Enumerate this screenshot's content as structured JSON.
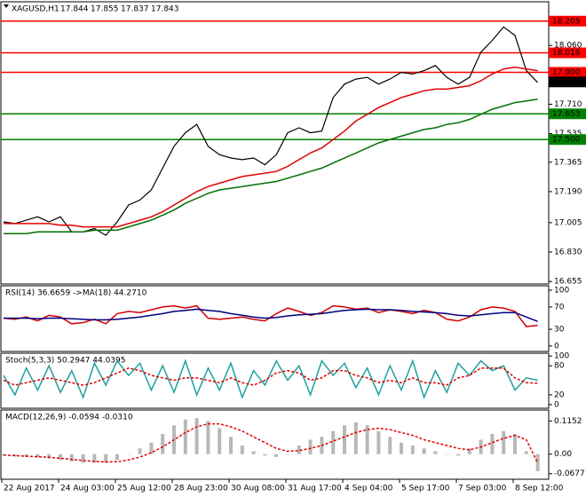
{
  "chart_data": [
    {
      "type": "line",
      "title": "XAGUSD,H1",
      "ohlc": [
        17.844,
        17.855,
        17.837,
        17.843
      ],
      "categories": [
        "22 Aug 2017",
        null,
        null,
        null,
        null,
        "24 Aug 03:00",
        null,
        null,
        null,
        null,
        "25 Aug 12:00",
        null,
        null,
        null,
        null,
        "28 Aug 23:00",
        null,
        null,
        null,
        null,
        "30 Aug 08:00",
        null,
        null,
        null,
        null,
        "31 Aug 17:00",
        null,
        null,
        null,
        null,
        "4 Sep 04:00",
        null,
        null,
        null,
        null,
        "5 Sep 17:00",
        null,
        null,
        null,
        null,
        "7 Sep 03:00",
        null,
        null,
        null,
        null,
        "8 Sep 12:00",
        null,
        null
      ],
      "ylim": [
        16.64,
        18.32
      ],
      "yticks": [
        16.655,
        {
          "value": 16.83,
          "label": "16.830"
        },
        17.005,
        {
          "value": 17.19,
          "label": "17.190"
        },
        17.365,
        17.535,
        {
          "value": 17.71,
          "label": "17.710"
        },
        {
          "value": 18.06,
          "label": "18.060"
        }
      ],
      "levels": [
        {
          "value": 18.205,
          "color": "#ff0000"
        },
        {
          "value": 18.016,
          "color": "#ff0000"
        },
        {
          "value": 17.9,
          "label": "17.900",
          "color": "#ff0000"
        },
        {
          "value": 17.653,
          "color": "#008000"
        },
        {
          "value": 17.5,
          "label": "17.500",
          "color": "#008000"
        }
      ],
      "last": 17.843,
      "series": [
        {
          "color": "#000000",
          "kind": "line",
          "values": [
            17.01,
            17.0,
            17.02,
            17.04,
            17.01,
            17.04,
            16.95,
            16.95,
            16.97,
            16.93,
            17.01,
            17.11,
            17.14,
            17.2,
            17.33,
            17.46,
            17.54,
            17.59,
            17.46,
            17.41,
            17.39,
            17.38,
            17.39,
            17.35,
            17.41,
            17.54,
            17.57,
            17.54,
            17.55,
            17.75,
            17.83,
            17.86,
            17.87,
            17.83,
            17.86,
            17.9,
            17.89,
            17.91,
            17.94,
            17.87,
            17.83,
            17.87,
            18.02,
            18.09,
            18.17,
            18.12,
            17.91,
            17.84
          ]
        },
        {
          "color": "#e00000",
          "kind": "line",
          "values": [
            17.0,
            17.0,
            17.0,
            17.0,
            17.0,
            16.99,
            16.99,
            16.98,
            16.98,
            16.98,
            16.98,
            17.0,
            17.02,
            17.04,
            17.07,
            17.11,
            17.15,
            17.19,
            17.22,
            17.24,
            17.26,
            17.28,
            17.29,
            17.3,
            17.31,
            17.34,
            17.38,
            17.42,
            17.45,
            17.5,
            17.55,
            17.61,
            17.65,
            17.69,
            17.72,
            17.75,
            17.77,
            17.79,
            17.8,
            17.8,
            17.81,
            17.82,
            17.85,
            17.89,
            17.92,
            17.93,
            17.92,
            17.91
          ]
        },
        {
          "color": "#007000",
          "kind": "line",
          "values": [
            16.94,
            16.94,
            16.94,
            16.95,
            16.95,
            16.95,
            16.95,
            16.95,
            16.96,
            16.96,
            16.96,
            16.98,
            17.0,
            17.02,
            17.05,
            17.08,
            17.12,
            17.15,
            17.18,
            17.2,
            17.21,
            17.22,
            17.23,
            17.24,
            17.25,
            17.27,
            17.29,
            17.31,
            17.33,
            17.36,
            17.39,
            17.42,
            17.45,
            17.48,
            17.5,
            17.52,
            17.54,
            17.56,
            17.57,
            17.59,
            17.6,
            17.62,
            17.65,
            17.68,
            17.7,
            17.72,
            17.73,
            17.74
          ]
        }
      ]
    },
    {
      "type": "line",
      "title": "RSI(14) 36.6659 ->MA(18) 44.2710",
      "ylim": [
        -9.7,
        108
      ],
      "yticks": [
        0,
        30,
        70,
        100
      ],
      "series": [
        {
          "color": "#d00000",
          "kind": "line",
          "values": [
            50,
            48,
            52,
            45,
            55,
            52,
            40,
            42,
            48,
            40,
            58,
            62,
            60,
            65,
            70,
            72,
            68,
            72,
            50,
            48,
            50,
            52,
            48,
            45,
            58,
            68,
            62,
            55,
            60,
            72,
            70,
            66,
            68,
            60,
            65,
            62,
            58,
            64,
            60,
            48,
            45,
            52,
            65,
            70,
            68,
            62,
            35,
            37
          ]
        },
        {
          "color": "#000080",
          "kind": "line",
          "values": [
            50,
            50,
            50,
            49,
            50,
            50,
            49,
            48,
            47,
            47,
            48,
            50,
            52,
            55,
            58,
            62,
            64,
            66,
            64,
            62,
            58,
            55,
            52,
            50,
            51,
            54,
            56,
            57,
            58,
            61,
            64,
            65,
            66,
            65,
            65,
            64,
            62,
            61,
            60,
            58,
            55,
            54,
            56,
            58,
            60,
            60,
            52,
            44
          ]
        }
      ]
    },
    {
      "type": "line",
      "title": "Stoch(5,3,3) 50.2947 44.0395",
      "ylim": [
        -7.5,
        105.7
      ],
      "yticks": [
        0,
        20,
        80,
        100
      ],
      "series": [
        {
          "color": "#20a0a0",
          "kind": "line",
          "values": [
            60,
            20,
            75,
            30,
            80,
            25,
            70,
            15,
            85,
            40,
            90,
            60,
            85,
            30,
            80,
            25,
            90,
            20,
            75,
            30,
            85,
            15,
            70,
            40,
            90,
            50,
            80,
            20,
            90,
            60,
            85,
            35,
            75,
            20,
            80,
            30,
            90,
            15,
            70,
            25,
            85,
            60,
            90,
            70,
            80,
            30,
            55,
            50
          ]
        },
        {
          "color": "#e00000",
          "kind": "line",
          "dash": true,
          "values": [
            50,
            40,
            45,
            50,
            55,
            50,
            45,
            40,
            45,
            55,
            65,
            75,
            70,
            60,
            55,
            50,
            55,
            55,
            50,
            45,
            55,
            45,
            40,
            50,
            65,
            70,
            65,
            50,
            55,
            70,
            70,
            60,
            55,
            45,
            50,
            45,
            55,
            45,
            45,
            40,
            55,
            60,
            75,
            75,
            75,
            55,
            45,
            44
          ]
        }
      ]
    },
    {
      "type": "line",
      "title": "MACD(12,26,9) -0.0594 -0.0310",
      "ylim": [
        -0.087,
        0.153
      ],
      "yticks": [
        -0.0677,
        {
          "value": 0,
          "label": "0.00"
        },
        0.1152
      ],
      "series": [
        {
          "color": "#b8b8b8",
          "kind": "bar",
          "values": [
            -0.005,
            -0.008,
            -0.01,
            -0.012,
            -0.015,
            -0.02,
            -0.025,
            -0.03,
            -0.03,
            -0.03,
            -0.02,
            0.0,
            0.02,
            0.04,
            0.07,
            0.1,
            0.12,
            0.125,
            0.115,
            0.09,
            0.06,
            0.03,
            0.01,
            -0.005,
            -0.01,
            0.0,
            0.03,
            0.05,
            0.06,
            0.08,
            0.1,
            0.11,
            0.1,
            0.08,
            0.06,
            0.04,
            0.03,
            0.02,
            0.01,
            0.0,
            -0.005,
            0.02,
            0.05,
            0.07,
            0.08,
            0.07,
            0.01,
            -0.0594
          ]
        },
        {
          "color": "#e00000",
          "kind": "line",
          "dash": true,
          "values": [
            -0.003,
            -0.005,
            -0.007,
            -0.009,
            -0.011,
            -0.014,
            -0.018,
            -0.022,
            -0.025,
            -0.027,
            -0.026,
            -0.02,
            -0.01,
            0.005,
            0.025,
            0.05,
            0.075,
            0.095,
            0.105,
            0.105,
            0.095,
            0.08,
            0.06,
            0.04,
            0.02,
            0.01,
            0.012,
            0.02,
            0.03,
            0.045,
            0.06,
            0.075,
            0.085,
            0.09,
            0.085,
            0.075,
            0.065,
            0.05,
            0.04,
            0.03,
            0.02,
            0.015,
            0.025,
            0.04,
            0.055,
            0.065,
            0.05,
            -0.031
          ]
        }
      ]
    }
  ]
}
